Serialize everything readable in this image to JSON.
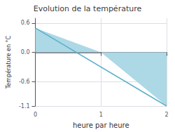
{
  "chart_data": {
    "type": "line",
    "title": "Evolution de la température",
    "xlabel": "heure par heure",
    "ylabel": "Température en °C",
    "xlim": [
      0,
      2.0
    ],
    "ylim": [
      -1.1,
      0.7
    ],
    "xticks": [
      0,
      1,
      2
    ],
    "yticks": [
      0.6,
      {
        "value": 0.0,
        "label": "0.0"
      },
      -0.6,
      -1.1
    ],
    "grid": true,
    "series": [
      {
        "type": "area",
        "color": "#add8e6",
        "x": [
          0,
          1.0,
          2.0
        ],
        "values": [
          0.5,
          0,
          -1.1
        ]
      },
      {
        "type": "line",
        "color": "#5ab0c8",
        "x": [
          0,
          2.0
        ],
        "values": [
          0.5,
          -1.1
        ]
      }
    ]
  }
}
